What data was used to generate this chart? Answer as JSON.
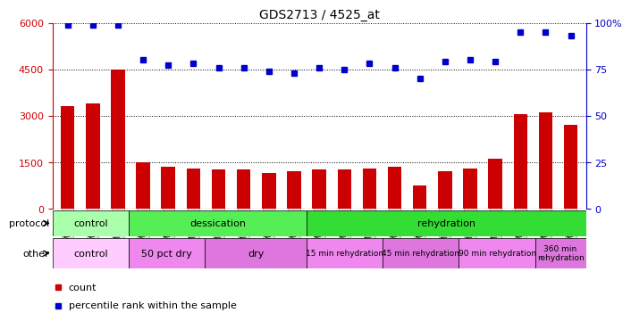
{
  "title": "GDS2713 / 4525_at",
  "samples": [
    "GSM21661",
    "GSM21662",
    "GSM21663",
    "GSM21664",
    "GSM21665",
    "GSM21666",
    "GSM21667",
    "GSM21668",
    "GSM21669",
    "GSM21670",
    "GSM21671",
    "GSM21672",
    "GSM21673",
    "GSM21674",
    "GSM21675",
    "GSM21676",
    "GSM21677",
    "GSM21678",
    "GSM21679",
    "GSM21680",
    "GSM21681"
  ],
  "counts": [
    3300,
    3400,
    4500,
    1500,
    1350,
    1300,
    1250,
    1250,
    1150,
    1200,
    1250,
    1250,
    1300,
    1350,
    750,
    1200,
    1300,
    1600,
    3050,
    3100,
    2700
  ],
  "percentile": [
    99,
    99,
    99,
    80,
    77,
    78,
    76,
    76,
    74,
    73,
    76,
    75,
    78,
    76,
    70,
    79,
    80,
    79,
    95,
    95,
    93
  ],
  "ylim_left": [
    0,
    6000
  ],
  "ylim_right": [
    0,
    100
  ],
  "yticks_left": [
    0,
    1500,
    3000,
    4500,
    6000
  ],
  "yticks_right": [
    0,
    25,
    50,
    75,
    100
  ],
  "bar_color": "#cc0000",
  "dot_color": "#0000cc",
  "protocol_groups": [
    {
      "label": "control",
      "start": 0,
      "end": 3,
      "color": "#aaffaa"
    },
    {
      "label": "dessication",
      "start": 3,
      "end": 10,
      "color": "#55ee55"
    },
    {
      "label": "rehydration",
      "start": 10,
      "end": 21,
      "color": "#33dd33"
    }
  ],
  "other_groups": [
    {
      "label": "control",
      "start": 0,
      "end": 3,
      "color": "#ffccff"
    },
    {
      "label": "50 pct dry",
      "start": 3,
      "end": 6,
      "color": "#ee88ee"
    },
    {
      "label": "dry",
      "start": 6,
      "end": 10,
      "color": "#dd77dd"
    },
    {
      "label": "15 min rehydration",
      "start": 10,
      "end": 13,
      "color": "#ee88ee"
    },
    {
      "label": "45 min rehydration",
      "start": 13,
      "end": 16,
      "color": "#dd77dd"
    },
    {
      "label": "90 min rehydration",
      "start": 16,
      "end": 19,
      "color": "#ee88ee"
    },
    {
      "label": "360 min\nrehydration",
      "start": 19,
      "end": 21,
      "color": "#dd77dd"
    }
  ],
  "grid_values": [
    1500,
    3000,
    4500,
    6000
  ],
  "bar_width": 0.55,
  "left_axis_color": "#cc0000",
  "right_axis_color": "#0000cc",
  "bg_color": "#ffffff",
  "xtick_bg": "#e0e0e0"
}
